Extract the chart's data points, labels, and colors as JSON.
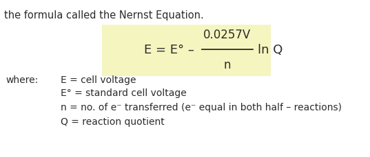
{
  "title_text": "the formula called the Nernst Equation.",
  "bg_color": "#ffffff",
  "highlight_bg": "#f5f5c0",
  "font_color": "#2b2b2b",
  "title_fontsize": 10.5,
  "formula_fontsize": 13,
  "def_fontsize": 10,
  "where_text": "where:",
  "definitions": [
    "E = cell voltage",
    "E° = standard cell voltage",
    "n = no. of e⁻ transferred (e⁻ equal in both half – reactions)",
    "Q = reaction quotient"
  ]
}
